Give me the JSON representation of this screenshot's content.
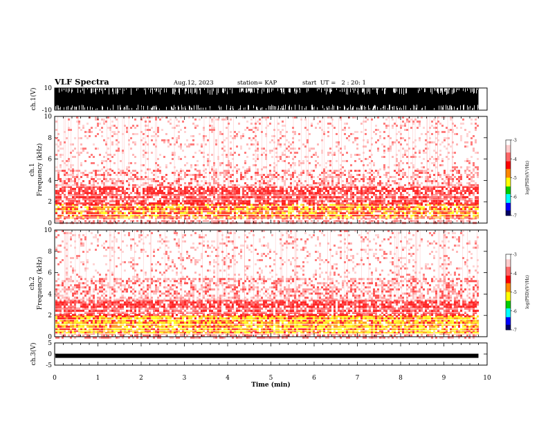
{
  "header": {
    "title": "VLF Spectra",
    "date": "Aug.12, 2023",
    "station": "station= KAP",
    "start": "start  UT =   2 : 20: 1"
  },
  "chart_data": [
    {
      "type": "line",
      "panel": "ch1-waveform",
      "ylabel": "ch.1(V)",
      "ylim": [
        -10,
        10
      ],
      "yticks": [
        "10",
        "-10"
      ],
      "xlim": [
        0,
        10
      ],
      "data_extent_min": 9.8,
      "description_of_signal": "dense noise saturating roughly -7..+10 V"
    },
    {
      "type": "heatmap",
      "panel": "ch1-spectrogram",
      "ylabel": "ch.1\nFrequency (kHz)",
      "ylabel_lines": [
        "ch.1",
        "Frequency  (kHz)"
      ],
      "ylim": [
        0,
        10
      ],
      "yticks": [
        "0",
        "2",
        "4",
        "6",
        "8",
        "10"
      ],
      "xlim": [
        0,
        10
      ],
      "intensity_profile_khz": [
        {
          "from": 0.0,
          "to": 0.5,
          "level": "white-bands"
        },
        {
          "from": 0.5,
          "to": 1.8,
          "level": "yellow-red"
        },
        {
          "from": 1.8,
          "to": 3.5,
          "level": "red"
        },
        {
          "from": 3.5,
          "to": 5.0,
          "level": "light-red"
        },
        {
          "from": 5.0,
          "to": 10.0,
          "level": "speckled-light"
        }
      ],
      "colorbar": {
        "label": "log(PSD)(V²/Hz)",
        "ticks": [
          "-3",
          "-4",
          "-5",
          "-6",
          "-7"
        ],
        "range": [
          -7,
          -3
        ]
      }
    },
    {
      "type": "heatmap",
      "panel": "ch2-spectrogram",
      "ylabel_lines": [
        "ch.2",
        "Frequency  (kHz)"
      ],
      "ylim": [
        0,
        10
      ],
      "yticks": [
        "0",
        "2",
        "4",
        "6",
        "8",
        "10"
      ],
      "xlim": [
        0,
        10
      ],
      "intensity_profile_khz": [
        {
          "from": 0.0,
          "to": 0.4,
          "level": "white-bands"
        },
        {
          "from": 0.4,
          "to": 2.0,
          "level": "yellow"
        },
        {
          "from": 2.0,
          "to": 3.5,
          "level": "red"
        },
        {
          "from": 3.5,
          "to": 5.5,
          "level": "light-red"
        },
        {
          "from": 5.5,
          "to": 10.0,
          "level": "speckled-light"
        }
      ],
      "colorbar": {
        "label": "log(PSD)(V²/Hz)",
        "ticks": [
          "-3",
          "-4",
          "-5",
          "-6",
          "-7"
        ],
        "range": [
          -7,
          -3
        ]
      }
    },
    {
      "type": "line",
      "panel": "ch3-waveform",
      "ylabel": "ch.3(V)",
      "ylim": [
        -5,
        5
      ],
      "yticks": [
        "5",
        "0",
        "-5"
      ],
      "xlim": [
        0,
        10
      ],
      "level_v": -0.8
    }
  ],
  "xaxis": {
    "label": "Time  (min)",
    "ticks": [
      "0",
      "1",
      "2",
      "3",
      "4",
      "5",
      "6",
      "7",
      "8",
      "9",
      "10"
    ]
  },
  "colors": {
    "strong": "#ffff00",
    "mid": "#ff0000",
    "weak": "#ffcccc",
    "background": "#ffffff"
  }
}
